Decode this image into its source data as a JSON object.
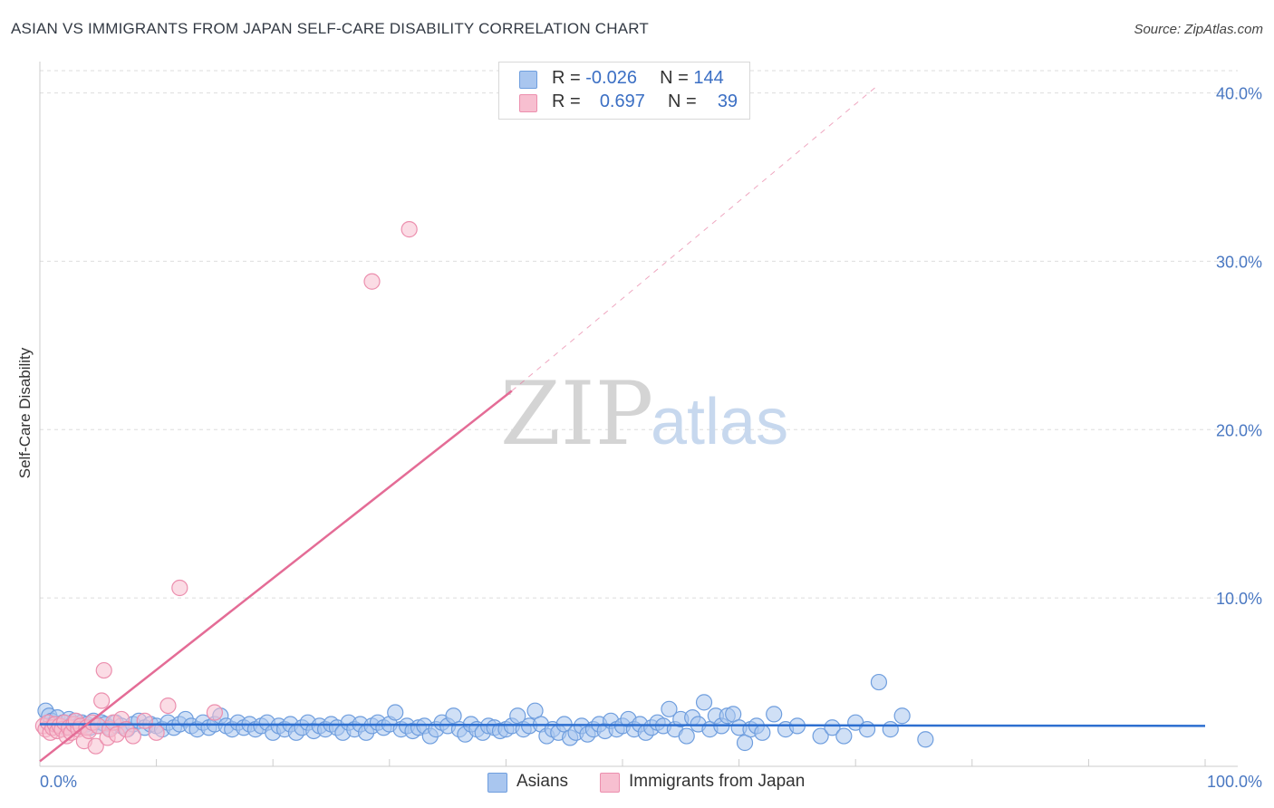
{
  "header": {
    "title": "ASIAN VS IMMIGRANTS FROM JAPAN SELF-CARE DISABILITY CORRELATION CHART",
    "source": "Source: ZipAtlas.com"
  },
  "watermark": {
    "zip": "ZIP",
    "atlas": "atlas"
  },
  "legend_top": {
    "rows": [
      {
        "r_label": "R =",
        "r_value": "-0.026",
        "n_label": "N =",
        "n_value": "144"
      },
      {
        "r_label": "R =",
        "r_value": "0.697",
        "n_label": "N =",
        "n_value": "39"
      }
    ]
  },
  "legend_bottom": {
    "items": [
      {
        "label": "Asians"
      },
      {
        "label": "Immigrants from Japan"
      }
    ]
  },
  "colors": {
    "asian_fill": "#a9c6ef",
    "asian_stroke": "#6f9ede",
    "asian_line": "#2d6fd0",
    "japan_fill": "#f7bfd0",
    "japan_stroke": "#ec8fae",
    "japan_line": "#e46c96",
    "grid": "#dddddd",
    "tick_text": "#4a78c2"
  },
  "chart_data": {
    "type": "scatter",
    "title": "ASIAN VS IMMIGRANTS FROM JAPAN SELF-CARE DISABILITY CORRELATION CHART",
    "xlabel": "",
    "ylabel": "Self-Care Disability",
    "xlim": [
      0,
      100
    ],
    "ylim": [
      0,
      42
    ],
    "x_tick_labels": [
      "0.0%",
      "100.0%"
    ],
    "y_ticks": [
      10,
      20,
      30,
      40
    ],
    "y_tick_labels": [
      "10.0%",
      "20.0%",
      "30.0%",
      "40.0%"
    ],
    "grid": true,
    "legend_position": "top-center",
    "series": [
      {
        "name": "Asians",
        "r": -0.026,
        "n": 144,
        "trend": {
          "x0": 0,
          "y0": 2.5,
          "x1": 100,
          "y1": 2.4
        },
        "points": [
          [
            0.5,
            3.3
          ],
          [
            0.8,
            3.0
          ],
          [
            1.0,
            2.7
          ],
          [
            1.2,
            2.5
          ],
          [
            1.5,
            2.9
          ],
          [
            1.8,
            2.4
          ],
          [
            2.0,
            2.6
          ],
          [
            2.2,
            2.3
          ],
          [
            2.5,
            2.8
          ],
          [
            2.8,
            2.5
          ],
          [
            3.0,
            2.7
          ],
          [
            3.3,
            2.4
          ],
          [
            3.6,
            2.6
          ],
          [
            4.0,
            2.5
          ],
          [
            4.3,
            2.3
          ],
          [
            4.6,
            2.7
          ],
          [
            5.0,
            2.4
          ],
          [
            5.3,
            2.6
          ],
          [
            5.6,
            2.5
          ],
          [
            6.0,
            2.3
          ],
          [
            6.5,
            2.6
          ],
          [
            7.0,
            2.4
          ],
          [
            7.5,
            2.2
          ],
          [
            8.0,
            2.5
          ],
          [
            8.5,
            2.7
          ],
          [
            9.0,
            2.3
          ],
          [
            9.5,
            2.5
          ],
          [
            10.0,
            2.4
          ],
          [
            10.5,
            2.2
          ],
          [
            11.0,
            2.6
          ],
          [
            11.5,
            2.3
          ],
          [
            12.0,
            2.5
          ],
          [
            12.5,
            2.8
          ],
          [
            13.0,
            2.4
          ],
          [
            13.5,
            2.2
          ],
          [
            14.0,
            2.6
          ],
          [
            14.5,
            2.3
          ],
          [
            15.0,
            2.5
          ],
          [
            15.5,
            3.0
          ],
          [
            16.0,
            2.4
          ],
          [
            16.5,
            2.2
          ],
          [
            17.0,
            2.6
          ],
          [
            17.5,
            2.3
          ],
          [
            18.0,
            2.5
          ],
          [
            18.5,
            2.2
          ],
          [
            19.0,
            2.4
          ],
          [
            19.5,
            2.6
          ],
          [
            20.0,
            2.0
          ],
          [
            20.5,
            2.4
          ],
          [
            21.0,
            2.2
          ],
          [
            21.5,
            2.5
          ],
          [
            22.0,
            2.0
          ],
          [
            22.5,
            2.3
          ],
          [
            23.0,
            2.6
          ],
          [
            23.5,
            2.1
          ],
          [
            24.0,
            2.4
          ],
          [
            24.5,
            2.2
          ],
          [
            25.0,
            2.5
          ],
          [
            25.5,
            2.3
          ],
          [
            26.0,
            2.0
          ],
          [
            26.5,
            2.6
          ],
          [
            27.0,
            2.2
          ],
          [
            27.5,
            2.5
          ],
          [
            28.0,
            2.0
          ],
          [
            28.5,
            2.4
          ],
          [
            29.0,
            2.6
          ],
          [
            29.5,
            2.3
          ],
          [
            30.0,
            2.5
          ],
          [
            30.5,
            3.2
          ],
          [
            31.0,
            2.2
          ],
          [
            31.5,
            2.4
          ],
          [
            32.0,
            2.1
          ],
          [
            32.5,
            2.3
          ],
          [
            33.0,
            2.4
          ],
          [
            33.5,
            1.8
          ],
          [
            34.0,
            2.2
          ],
          [
            34.5,
            2.6
          ],
          [
            35.0,
            2.4
          ],
          [
            35.5,
            3.0
          ],
          [
            36.0,
            2.2
          ],
          [
            36.5,
            1.9
          ],
          [
            37.0,
            2.5
          ],
          [
            37.5,
            2.2
          ],
          [
            38.0,
            2.0
          ],
          [
            38.5,
            2.4
          ],
          [
            39.0,
            2.3
          ],
          [
            39.5,
            2.1
          ],
          [
            40.0,
            2.2
          ],
          [
            40.5,
            2.4
          ],
          [
            41.0,
            3.0
          ],
          [
            41.5,
            2.2
          ],
          [
            42.0,
            2.4
          ],
          [
            42.5,
            3.3
          ],
          [
            43.0,
            2.5
          ],
          [
            43.5,
            1.8
          ],
          [
            44.0,
            2.2
          ],
          [
            44.5,
            2.0
          ],
          [
            45.0,
            2.5
          ],
          [
            45.5,
            1.7
          ],
          [
            46.0,
            2.0
          ],
          [
            46.5,
            2.4
          ],
          [
            47.0,
            1.9
          ],
          [
            47.5,
            2.2
          ],
          [
            48.0,
            2.5
          ],
          [
            48.5,
            2.1
          ],
          [
            49.0,
            2.7
          ],
          [
            49.5,
            2.2
          ],
          [
            50.0,
            2.4
          ],
          [
            50.5,
            2.8
          ],
          [
            51.0,
            2.2
          ],
          [
            51.5,
            2.5
          ],
          [
            52.0,
            2.0
          ],
          [
            52.5,
            2.3
          ],
          [
            53.0,
            2.6
          ],
          [
            53.5,
            2.4
          ],
          [
            54.0,
            3.4
          ],
          [
            54.5,
            2.2
          ],
          [
            55.0,
            2.8
          ],
          [
            55.5,
            1.8
          ],
          [
            56.0,
            2.9
          ],
          [
            56.5,
            2.5
          ],
          [
            57.0,
            3.8
          ],
          [
            57.5,
            2.2
          ],
          [
            58.0,
            3.0
          ],
          [
            58.5,
            2.4
          ],
          [
            59.0,
            3.0
          ],
          [
            59.5,
            3.1
          ],
          [
            60.0,
            2.3
          ],
          [
            60.5,
            1.4
          ],
          [
            61.0,
            2.2
          ],
          [
            61.5,
            2.4
          ],
          [
            62.0,
            2.0
          ],
          [
            63.0,
            3.1
          ],
          [
            64.0,
            2.2
          ],
          [
            65.0,
            2.4
          ],
          [
            67.0,
            1.8
          ],
          [
            68.0,
            2.3
          ],
          [
            69.0,
            1.8
          ],
          [
            70.0,
            2.6
          ],
          [
            71.0,
            2.2
          ],
          [
            72.0,
            5.0
          ],
          [
            73.0,
            2.2
          ],
          [
            74.0,
            3.0
          ],
          [
            76.0,
            1.6
          ]
        ]
      },
      {
        "name": "Immigrants from Japan",
        "r": 0.697,
        "n": 39,
        "trend": {
          "x0": 0,
          "y0": 0.3,
          "x1": 40.5,
          "y1": 22.3,
          "dashed_to_x": 72,
          "dashed_to_y": 40.5
        },
        "points": [
          [
            0.3,
            2.4
          ],
          [
            0.5,
            2.2
          ],
          [
            0.7,
            2.6
          ],
          [
            0.9,
            2.0
          ],
          [
            1.1,
            2.3
          ],
          [
            1.3,
            2.5
          ],
          [
            1.5,
            2.1
          ],
          [
            1.7,
            2.4
          ],
          [
            1.9,
            2.2
          ],
          [
            2.1,
            2.6
          ],
          [
            2.3,
            1.8
          ],
          [
            2.5,
            2.3
          ],
          [
            2.7,
            2.0
          ],
          [
            2.9,
            2.5
          ],
          [
            3.1,
            2.7
          ],
          [
            3.3,
            2.2
          ],
          [
            3.5,
            2.4
          ],
          [
            3.8,
            1.5
          ],
          [
            4.0,
            2.3
          ],
          [
            4.2,
            2.1
          ],
          [
            4.5,
            2.6
          ],
          [
            4.8,
            1.2
          ],
          [
            5.0,
            2.4
          ],
          [
            5.3,
            3.9
          ],
          [
            5.5,
            5.7
          ],
          [
            5.8,
            1.7
          ],
          [
            6.0,
            2.2
          ],
          [
            6.3,
            2.6
          ],
          [
            6.6,
            1.9
          ],
          [
            7.0,
            2.8
          ],
          [
            7.4,
            2.2
          ],
          [
            8.0,
            1.8
          ],
          [
            9.0,
            2.7
          ],
          [
            10.0,
            2.0
          ],
          [
            11.0,
            3.6
          ],
          [
            12.0,
            10.6
          ],
          [
            15.0,
            3.2
          ],
          [
            28.5,
            28.8
          ],
          [
            31.7,
            31.9
          ]
        ]
      }
    ]
  }
}
